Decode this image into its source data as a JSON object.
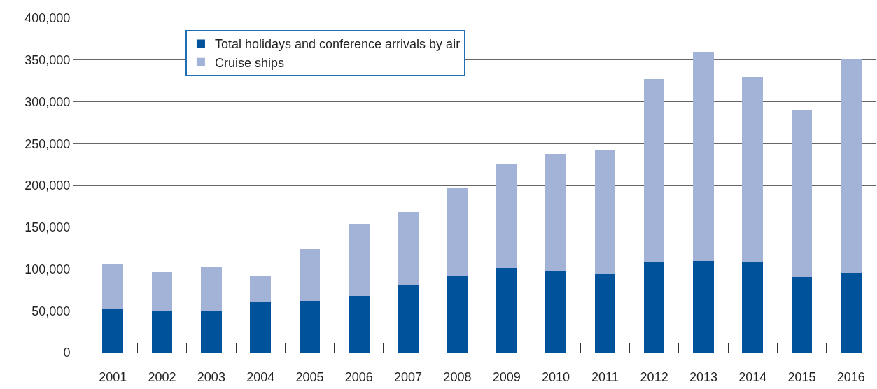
{
  "chart_data": {
    "type": "bar",
    "stacked": true,
    "categories": [
      "2001",
      "2002",
      "2003",
      "2004",
      "2005",
      "2006",
      "2007",
      "2008",
      "2009",
      "2010",
      "2011",
      "2012",
      "2013",
      "2014",
      "2015",
      "2016"
    ],
    "series": [
      {
        "name": "Total holidays and conference arrivals by air",
        "color": "#00529b",
        "values": [
          53000,
          49000,
          50000,
          61000,
          62000,
          68000,
          81000,
          91000,
          101000,
          97000,
          94000,
          109000,
          110000,
          109000,
          90000,
          95000
        ]
      },
      {
        "name": "Cruise ships",
        "color": "#a3b3d8",
        "values": [
          53000,
          47000,
          53000,
          31000,
          62000,
          86000,
          87000,
          106000,
          125000,
          141000,
          148000,
          218000,
          249000,
          221000,
          200000,
          256000
        ]
      }
    ],
    "ylim": [
      0,
      400000
    ],
    "yticks": [
      {
        "value": 0,
        "label": "0"
      },
      {
        "value": 50000,
        "label": "50,000"
      },
      {
        "value": 100000,
        "label": "100,000"
      },
      {
        "value": 150000,
        "label": "150,000"
      },
      {
        "value": 200000,
        "label": "200,000"
      },
      {
        "value": 250000,
        "label": "250,000"
      },
      {
        "value": 300000,
        "label": "300,000"
      },
      {
        "value": 350000,
        "label": "350,000"
      },
      {
        "value": 400000,
        "label": "400,000"
      }
    ],
    "grid": "y",
    "legend": "top left"
  }
}
